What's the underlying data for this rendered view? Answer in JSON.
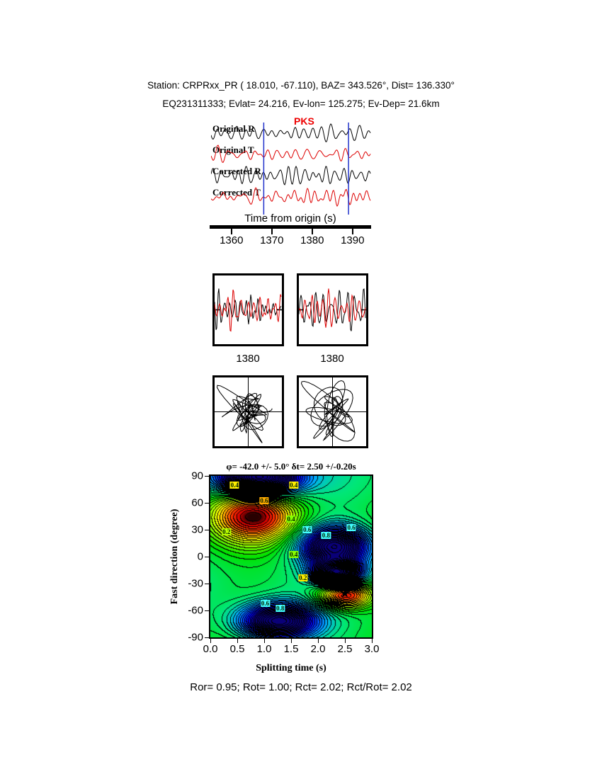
{
  "header": {
    "line1": "Station: CRPRxx_PR ( 18.010, -67.110), BAZ= 343.526°, Dist= 136.330°",
    "line2": "EQ231311333; Evlat= 24.216, Ev-lon= 125.275; Ev-Dep= 21.6km"
  },
  "waveform_panel": {
    "phase_label": "PKS",
    "traces": [
      {
        "label": "Original R",
        "color": "#000000"
      },
      {
        "label": "Original T",
        "color": "#dd0000"
      },
      {
        "label": "Corrected R",
        "color": "#000000"
      },
      {
        "label": "Corrected T",
        "color": "#dd0000"
      }
    ],
    "axis_label": "Time from origin (s)",
    "ticks": [
      "1360",
      "1370",
      "1380",
      "1390"
    ],
    "time_range": [
      1354.6,
      1394.6
    ],
    "window_markers": [
      1368,
      1389
    ],
    "marker_color": "#2233cc"
  },
  "zoom_panels": [
    {
      "tick": "1380"
    },
    {
      "tick": "1380"
    }
  ],
  "chart_data": {
    "type": "contour",
    "title": "φ= -42.0 +/- 5.0° δt= 2.50 +/-0.20s",
    "xlabel": "Splitting time (s)",
    "ylabel": "Fast direction (degree)",
    "xlim": [
      0.0,
      3.0
    ],
    "ylim": [
      -90,
      90
    ],
    "xticks": [
      "0.0",
      "0.5",
      "1.0",
      "1.5",
      "2.0",
      "2.5",
      "3.0"
    ],
    "yticks": [
      "90",
      "60",
      "30",
      "0",
      "-30",
      "-60",
      "-90"
    ],
    "grid": false,
    "best_fit": {
      "fast_direction_deg": -42.0,
      "fast_direction_err_deg": 5.0,
      "splitting_time_s": 2.5,
      "splitting_time_err_s": 0.2,
      "x": 2.5,
      "y": -42,
      "marker_glyph": "★"
    },
    "contour_levels": [
      0.2,
      0.4,
      0.6,
      0.8
    ],
    "surface_features": [
      {
        "kind": "high",
        "x": 0.8,
        "y": 46,
        "sx": 0.55,
        "sy": 20,
        "amp": 0.5
      },
      {
        "kind": "low",
        "x": 0.9,
        "y": 88,
        "sx": 0.5,
        "sy": 13,
        "amp": -1.0
      },
      {
        "kind": "low",
        "x": 1.25,
        "y": -72,
        "sx": 0.5,
        "sy": 14,
        "amp": -0.75
      },
      {
        "kind": "low",
        "x": 2.3,
        "y": 12,
        "sx": 0.45,
        "sy": 15,
        "amp": -0.7
      },
      {
        "kind": "low",
        "x": 2.35,
        "y": -18,
        "sx": 0.28,
        "sy": 9,
        "amp": -0.95
      },
      {
        "kind": "high",
        "x": 2.5,
        "y": -42,
        "sx": 0.35,
        "sy": 11,
        "amp": 0.55
      }
    ],
    "contour_labels": [
      {
        "text": "0.4",
        "x": 0.45,
        "y": 80,
        "bg": "#ffee00"
      },
      {
        "text": "0.4",
        "x": 1.55,
        "y": 80,
        "bg": "#ffee00"
      },
      {
        "text": "0.6",
        "x": 1.0,
        "y": 62,
        "bg": "#ffaa00"
      },
      {
        "text": "0.2",
        "x": 0.3,
        "y": 28,
        "bg": "#bbff00"
      },
      {
        "text": "0.4",
        "x": 1.5,
        "y": 42,
        "bg": "#88ff00"
      },
      {
        "text": "0.6",
        "x": 1.8,
        "y": 30,
        "bg": "#44ffff"
      },
      {
        "text": "0.8",
        "x": 2.15,
        "y": 24,
        "bg": "#44ffff"
      },
      {
        "text": "0.6",
        "x": 2.62,
        "y": 32,
        "bg": "#44ffff"
      },
      {
        "text": "0.4",
        "x": 1.55,
        "y": 2,
        "bg": "#88ff00"
      },
      {
        "text": "0.2",
        "x": 1.72,
        "y": -24,
        "bg": "#ffee00"
      },
      {
        "text": "0.6",
        "x": 1.02,
        "y": -52,
        "bg": "#44ffff"
      },
      {
        "text": "0.8",
        "x": 1.3,
        "y": -58,
        "bg": "#44ffff"
      }
    ]
  },
  "results_line": "Ror= 0.95; Rot= 1.00; Rct= 2.02; Rct/Rot= 2.02"
}
